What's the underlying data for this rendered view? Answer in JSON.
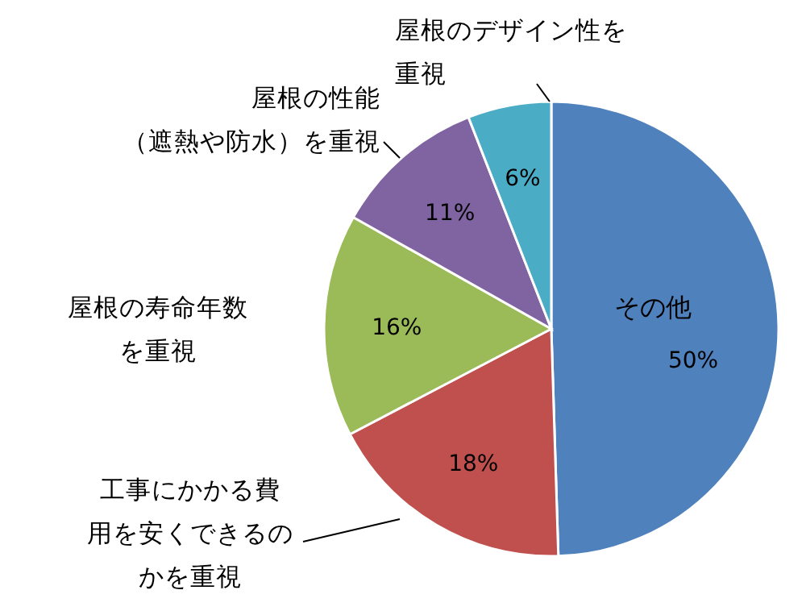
{
  "chart_data": {
    "type": "pie",
    "categories": [
      "その他",
      "工事にかかる費用を安くできるのかを重視",
      "屋根の寿命年数を重視",
      "屋根の性能（遮熱や防水）を重視",
      "屋根のデザイン性を重視"
    ],
    "values": [
      50,
      18,
      16,
      11,
      6
    ],
    "value_labels": [
      "50%",
      "18%",
      "16%",
      "11%",
      "6%"
    ],
    "colors": [
      "#4f81bd",
      "#c0504d",
      "#9bbb59",
      "#8064a2",
      "#4bacc6"
    ],
    "legend": false
  }
}
